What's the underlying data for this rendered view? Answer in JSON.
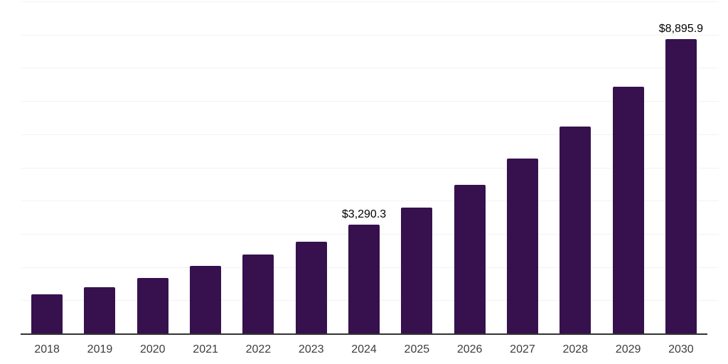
{
  "colors": {
    "background": "#ffffff",
    "bar": "#36114e",
    "axis": "#333333",
    "gridline": "#f2f2f2",
    "data_label": "#000000",
    "tick_label": "#3d3d3d"
  },
  "chart_data": {
    "type": "bar",
    "title": "",
    "xlabel": "",
    "ylabel": "",
    "ylim": [
      0,
      10000
    ],
    "grid_interval": 1000,
    "grid": "horizontal light gridlines, no y-axis tick labels",
    "legend": "none",
    "categories": [
      "2018",
      "2019",
      "2020",
      "2021",
      "2022",
      "2023",
      "2024",
      "2025",
      "2026",
      "2027",
      "2028",
      "2029",
      "2030"
    ],
    "values": [
      1200,
      1420,
      1690,
      2050,
      2390,
      2790,
      3290.3,
      3820,
      4490,
      5290,
      6260,
      7460,
      8895.9
    ],
    "data_labels": [
      {
        "category": "2024",
        "text": "$3,290.3"
      },
      {
        "category": "2030",
        "text": "$8,895.9"
      }
    ]
  }
}
